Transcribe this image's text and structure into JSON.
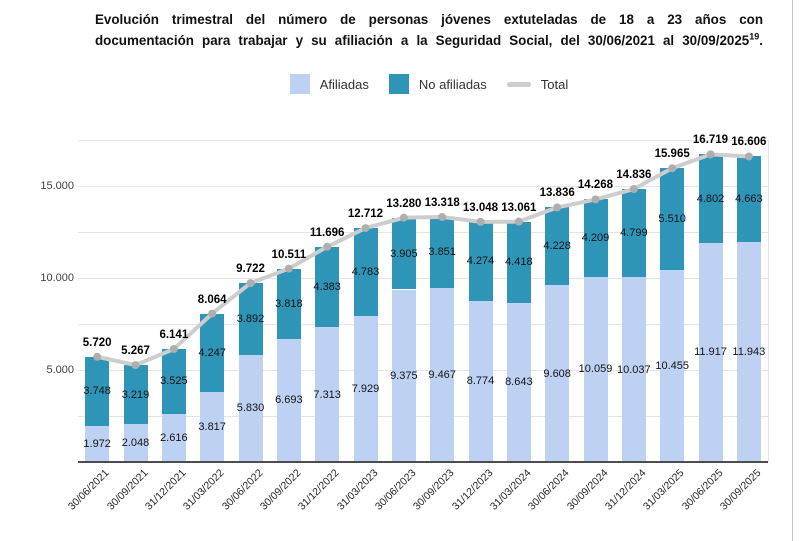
{
  "title": {
    "line1": "Evolución trimestral del número de personas jóvenes extuteladas de 18 a 23 años con",
    "line2": "documentación para trabajar y su afiliación a la Seguridad Social, del 30/06/2021 al 30/09/2025",
    "footnote": "19",
    "suffix": "."
  },
  "legend": {
    "items": [
      {
        "label": "Afiliadas"
      },
      {
        "label": "No afiliadas"
      },
      {
        "label": "Total"
      }
    ]
  },
  "chart_data": {
    "type": "bar",
    "stacked": true,
    "title": "Evolución trimestral del número de personas jóvenes extuteladas de 18 a 23 años con documentación para trabajar y su afiliación a la Seguridad Social, del 30/06/2021 al 30/09/2025",
    "categories": [
      "30/06/2021",
      "30/09/2021",
      "31/12/2021",
      "31/03/2022",
      "30/06/2022",
      "30/09/2022",
      "31/12/2022",
      "31/03/2023",
      "30/06/2023",
      "30/09/2023",
      "31/12/2023",
      "31/03/2024",
      "30/06/2024",
      "30/09/2024",
      "31/12/2024",
      "31/03/2025",
      "30/06/2025",
      "30/09/2025"
    ],
    "series": [
      {
        "name": "Afiliadas",
        "color": "#bdd1f3",
        "values": [
          1972,
          2048,
          2616,
          3817,
          5830,
          6693,
          7313,
          7929,
          9375,
          9467,
          8774,
          8643,
          9608,
          10059,
          10037,
          10455,
          11917,
          11943
        ]
      },
      {
        "name": "No afiliadas",
        "color": "#2e95b8",
        "values": [
          3748,
          3219,
          3525,
          4247,
          3892,
          3818,
          4383,
          4783,
          3905,
          3851,
          4274,
          4418,
          4228,
          4209,
          4799,
          5510,
          4802,
          4663
        ]
      }
    ],
    "total_line": {
      "name": "Total",
      "color": "#cdcdcd",
      "marker_color": "#aeaeae",
      "values": [
        5720,
        5267,
        6141,
        8064,
        9722,
        10511,
        11696,
        12712,
        13280,
        13318,
        13048,
        13061,
        13836,
        14268,
        14836,
        15965,
        16719,
        16606
      ]
    },
    "xlabel": "",
    "ylabel": "",
    "ylim": [
      0,
      17500
    ],
    "ytick_step": 2500,
    "yticks_labeled": [
      5000,
      10000,
      15000
    ],
    "grid": true,
    "legend_position": "top",
    "number_format": "thousands-dot"
  }
}
